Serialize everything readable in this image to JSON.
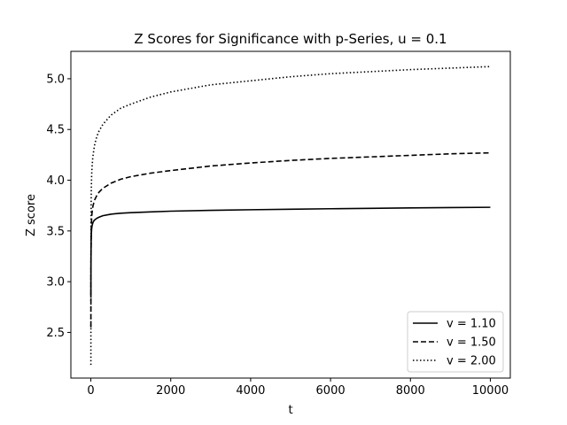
{
  "chart_data": {
    "type": "line",
    "title": "Z Scores for Significance with p-Series, u = 0.1",
    "xlabel": "t",
    "ylabel": "Z score",
    "xlim": [
      -500,
      10500
    ],
    "ylim": [
      2.05,
      5.27
    ],
    "xticks": [
      0,
      2000,
      4000,
      6000,
      8000,
      10000
    ],
    "xtick_labels": [
      "0",
      "2000",
      "4000",
      "6000",
      "8000",
      "10000"
    ],
    "yticks": [
      2.5,
      3.0,
      3.5,
      4.0,
      4.5,
      5.0
    ],
    "ytick_labels": [
      "2.5",
      "3.0",
      "3.5",
      "4.0",
      "4.5",
      "5.0"
    ],
    "grid": false,
    "legend_position": "lower-right",
    "series": [
      {
        "name": "v = 1.10",
        "color": "#000000",
        "dash": "solid",
        "x": [
          1,
          2,
          3,
          5,
          8,
          12,
          20,
          30,
          50,
          75,
          100,
          150,
          200,
          300,
          500,
          750,
          1000,
          1500,
          2000,
          3000,
          4000,
          5000,
          6000,
          7000,
          8000,
          9000,
          10000
        ],
        "y": [
          2.85,
          3.05,
          3.17,
          3.3,
          3.4,
          3.47,
          3.52,
          3.55,
          3.58,
          3.6,
          3.61,
          3.625,
          3.635,
          3.65,
          3.665,
          3.675,
          3.68,
          3.688,
          3.695,
          3.703,
          3.709,
          3.714,
          3.719,
          3.723,
          3.727,
          3.73,
          3.733
        ]
      },
      {
        "name": "v = 1.50",
        "color": "#000000",
        "dash": "dashed",
        "x": [
          1,
          2,
          3,
          5,
          8,
          12,
          20,
          30,
          50,
          75,
          100,
          150,
          200,
          300,
          500,
          750,
          1000,
          1500,
          2000,
          3000,
          4000,
          5000,
          6000,
          7000,
          8000,
          9000,
          10000
        ],
        "y": [
          2.55,
          2.9,
          3.1,
          3.3,
          3.45,
          3.55,
          3.63,
          3.68,
          3.74,
          3.78,
          3.81,
          3.85,
          3.88,
          3.92,
          3.97,
          4.01,
          4.035,
          4.07,
          4.095,
          4.14,
          4.17,
          4.195,
          4.215,
          4.23,
          4.245,
          4.26,
          4.27
        ]
      },
      {
        "name": "v = 2.00",
        "color": "#000000",
        "dash": "dotted",
        "x": [
          1,
          2,
          3,
          5,
          8,
          12,
          20,
          30,
          50,
          75,
          100,
          150,
          200,
          300,
          500,
          750,
          1000,
          1500,
          2000,
          3000,
          4000,
          5000,
          6000,
          7000,
          8000,
          9000,
          10000
        ],
        "y": [
          2.18,
          2.9,
          3.3,
          3.6,
          3.8,
          3.92,
          4.05,
          4.13,
          4.23,
          4.3,
          4.36,
          4.43,
          4.48,
          4.55,
          4.64,
          4.71,
          4.75,
          4.82,
          4.87,
          4.94,
          4.98,
          5.02,
          5.05,
          5.07,
          5.09,
          5.105,
          5.12
        ]
      }
    ]
  }
}
